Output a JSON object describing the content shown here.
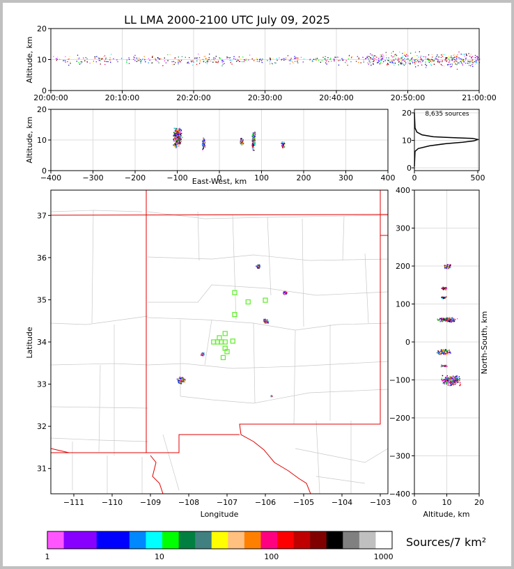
{
  "chart_data": [
    {
      "type": "scatter",
      "panel": "altitude-time",
      "title": "LL LMA 2000-2100 UTC July 09, 2025",
      "ylabel": "Altitude, km",
      "ylim": [
        0,
        20
      ],
      "yticks": [
        "0",
        "10",
        "20"
      ],
      "xticks": [
        "20:00:00",
        "20:10:00",
        "20:20:00",
        "20:30:00",
        "20:40:00",
        "20:50:00",
        "21:00:00"
      ],
      "xlim_minutes": [
        0,
        60
      ],
      "grid": true,
      "series": [
        {
          "t_start": 0,
          "t_end": 60,
          "alt_low": 6,
          "alt_high": 14,
          "density": "low before 20:44, high after 20:45"
        }
      ]
    },
    {
      "type": "scatter",
      "panel": "altitude-eastwest",
      "xlabel": "East-West, km",
      "ylabel": "Altitude, km",
      "xlim": [
        -400,
        400
      ],
      "ylim": [
        0,
        20
      ],
      "xticks": [
        "−400",
        "−300",
        "−200",
        "−100",
        "0",
        "100",
        "200",
        "300",
        "400"
      ],
      "yticks": [
        "0",
        "10",
        "20"
      ],
      "clusters": [
        {
          "x": -100,
          "alt": 11,
          "spread_x": 12,
          "spread_alt": 4
        },
        {
          "x": -38,
          "alt": 9,
          "spread_x": 4,
          "spread_alt": 2.5
        },
        {
          "x": 52,
          "alt": 9.5,
          "spread_x": 5,
          "spread_alt": 1.5
        },
        {
          "x": 80,
          "alt": 10,
          "spread_x": 5,
          "spread_alt": 4
        },
        {
          "x": 150,
          "alt": 8.5,
          "spread_x": 5,
          "spread_alt": 1.5
        }
      ]
    },
    {
      "type": "line",
      "panel": "altitude-histogram",
      "annotation": "8,635 sources",
      "xlim": [
        0,
        500
      ],
      "ylim": [
        0,
        20
      ],
      "xticks": [
        "0",
        "500"
      ],
      "yticks": [
        "0",
        "10",
        "20"
      ],
      "counts": [
        [
          0,
          0.5
        ],
        [
          2,
          3
        ],
        [
          5,
          6
        ],
        [
          30,
          7
        ],
        [
          120,
          8
        ],
        [
          250,
          8.8
        ],
        [
          380,
          9.3
        ],
        [
          470,
          9.8
        ],
        [
          500,
          10.3
        ],
        [
          460,
          10.7
        ],
        [
          300,
          11
        ],
        [
          150,
          11.3
        ],
        [
          60,
          12
        ],
        [
          20,
          13
        ],
        [
          5,
          14.5
        ],
        [
          0,
          20
        ]
      ]
    },
    {
      "type": "scatter",
      "panel": "plan-view",
      "xlabel": "Longitude",
      "ylabel": "Latitude",
      "xlim": [
        -111.6,
        -102.8
      ],
      "ylim": [
        30.4,
        37.6
      ],
      "xticks": [
        "−111",
        "−110",
        "−109",
        "−108",
        "−107",
        "−106",
        "−105",
        "−104",
        "−103"
      ],
      "yticks": [
        "31",
        "32",
        "33",
        "34",
        "35",
        "36",
        "37"
      ],
      "clusters": [
        {
          "lon": -108.2,
          "lat": 33.1,
          "spread": 0.12
        },
        {
          "lon": -107.65,
          "lat": 33.72,
          "spread": 0.05
        },
        {
          "lon": -106.0,
          "lat": 34.5,
          "spread": 0.08
        },
        {
          "lon": -106.2,
          "lat": 35.8,
          "spread": 0.06
        },
        {
          "lon": -105.5,
          "lat": 35.18,
          "spread": 0.06
        },
        {
          "lon": -105.85,
          "lat": 32.73,
          "spread": 0.02
        }
      ],
      "stations": [
        [
          -106.8,
          35.17
        ],
        [
          -106.45,
          34.95
        ],
        [
          -106.0,
          34.99
        ],
        [
          -106.8,
          34.65
        ],
        [
          -107.05,
          34.2
        ],
        [
          -107.2,
          34.1
        ],
        [
          -107.25,
          34.0
        ],
        [
          -107.35,
          34.0
        ],
        [
          -107.15,
          34.0
        ],
        [
          -107.05,
          34.0
        ],
        [
          -106.85,
          34.02
        ],
        [
          -107.05,
          33.85
        ],
        [
          -107.0,
          33.77
        ],
        [
          -107.1,
          33.63
        ]
      ]
    },
    {
      "type": "scatter",
      "panel": "northsouth-altitude",
      "xlabel": "Altitude, km",
      "ylabel": "North-South, km",
      "xlim": [
        0,
        20
      ],
      "ylim": [
        -400,
        400
      ],
      "xticks": [
        "0",
        "10",
        "20"
      ],
      "yticks": [
        "−400",
        "−300",
        "−200",
        "−100",
        "0",
        "100",
        "200",
        "300",
        "400"
      ],
      "clusters": [
        {
          "ns": 200,
          "alt": 10,
          "spread_ns": 8,
          "spread_alt": 1.5
        },
        {
          "ns": 142,
          "alt": 9,
          "spread_ns": 5,
          "spread_alt": 1
        },
        {
          "ns": 118,
          "alt": 9,
          "spread_ns": 3,
          "spread_alt": 1
        },
        {
          "ns": 60,
          "alt": 10,
          "spread_ns": 8,
          "spread_alt": 3.5
        },
        {
          "ns": -25,
          "alt": 9,
          "spread_ns": 8,
          "spread_alt": 2.5
        },
        {
          "ns": -62,
          "alt": 9,
          "spread_ns": 3,
          "spread_alt": 1.5
        },
        {
          "ns": -100,
          "alt": 11,
          "spread_ns": 15,
          "spread_alt": 3.5
        }
      ]
    }
  ],
  "colorbar": {
    "label": "Sources/7 km²",
    "ticks": [
      "1",
      "10",
      "100",
      "1000"
    ],
    "colors": [
      "#ff55ff",
      "#8800ff",
      "#8800ff",
      "#0000ff",
      "#0000ff",
      "#0088ff",
      "#00ffff",
      "#00ff00",
      "#008040",
      "#408080",
      "#ffff00",
      "#ffc080",
      "#ff8000",
      "#ff0080",
      "#ff0000",
      "#c00000",
      "#800000",
      "#000000",
      "#808080",
      "#c0c0c0",
      "#ffffff"
    ]
  }
}
